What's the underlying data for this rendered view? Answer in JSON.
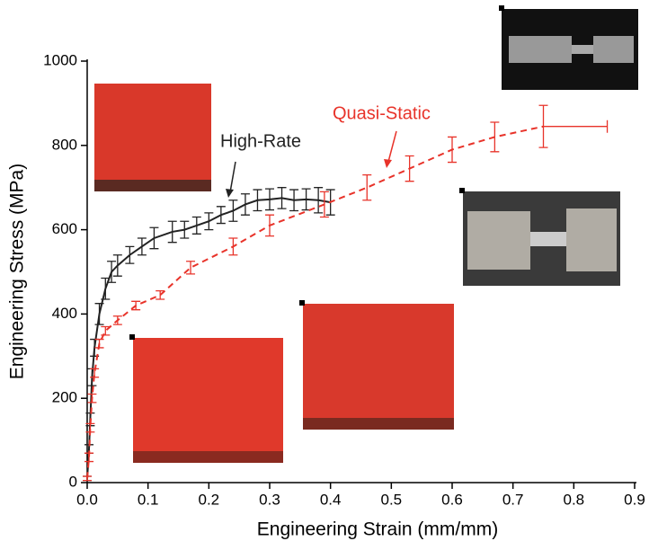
{
  "chart_data": {
    "type": "line",
    "x_label": "Engineering Strain (mm/mm)",
    "y_label": "Engineering Stress (MPa)",
    "xlim": [
      0,
      0.9
    ],
    "xticks": [
      {
        "value": 0,
        "label": "0.0"
      },
      0.1,
      0.2,
      0.3,
      0.4,
      0.5,
      0.6,
      0.7,
      0.8,
      0.9
    ],
    "ylim": [
      0,
      1000
    ],
    "yticks": [
      0,
      200,
      400,
      600,
      800,
      1000
    ],
    "annotations": [
      "High-Rate",
      "Quasi-Static"
    ],
    "series": [
      {
        "name": "High-Rate",
        "color": "#222222",
        "dashed": false,
        "x": [
          0,
          0.003,
          0.005,
          0.008,
          0.012,
          0.02,
          0.03,
          0.04,
          0.05,
          0.07,
          0.09,
          0.11,
          0.14,
          0.16,
          0.18,
          0.2,
          0.22,
          0.24,
          0.26,
          0.28,
          0.3,
          0.32,
          0.34,
          0.36,
          0.38,
          0.4
        ],
        "values": [
          10,
          80,
          150,
          250,
          320,
          400,
          460,
          500,
          515,
          540,
          560,
          580,
          595,
          600,
          610,
          620,
          635,
          645,
          660,
          670,
          672,
          675,
          670,
          672,
          670,
          665
        ],
        "errors": [
          5,
          10,
          15,
          20,
          20,
          25,
          25,
          25,
          25,
          20,
          20,
          25,
          25,
          20,
          20,
          20,
          20,
          25,
          25,
          25,
          25,
          25,
          25,
          25,
          30,
          30
        ]
      },
      {
        "name": "Quasi-Static",
        "color": "#e8332a",
        "dashed": true,
        "x": [
          0,
          0.003,
          0.005,
          0.008,
          0.012,
          0.02,
          0.03,
          0.05,
          0.08,
          0.12,
          0.17,
          0.24,
          0.3,
          0.39,
          0.46,
          0.53,
          0.6,
          0.67,
          0.75
        ],
        "values": [
          10,
          60,
          130,
          200,
          260,
          330,
          360,
          385,
          420,
          445,
          510,
          560,
          610,
          660,
          700,
          745,
          790,
          820,
          845
        ],
        "errors": [
          5,
          10,
          10,
          10,
          10,
          10,
          10,
          10,
          10,
          10,
          15,
          20,
          25,
          30,
          30,
          30,
          30,
          35,
          50
        ],
        "x_errors": [
          null,
          null,
          null,
          null,
          null,
          null,
          null,
          null,
          null,
          null,
          null,
          null,
          null,
          null,
          null,
          null,
          null,
          null,
          0.105
        ]
      }
    ]
  }
}
